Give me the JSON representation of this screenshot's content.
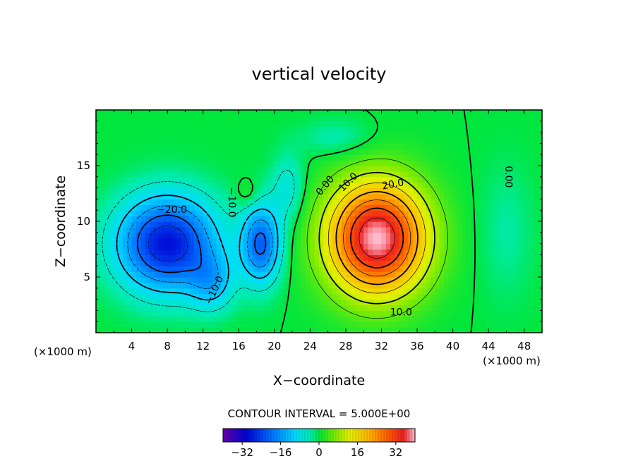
{
  "chart_data": {
    "type": "heatmap",
    "title": "vertical velocity",
    "xlabel": "X−coordinate",
    "ylabel": "Z−coordinate",
    "x_unit_left": "(×1000 m)",
    "x_unit_right": "(×1000 m)",
    "x_ticks": [
      "4",
      "8",
      "12",
      "16",
      "20",
      "24",
      "28",
      "32",
      "36",
      "40",
      "44",
      "48"
    ],
    "y_ticks": [
      "5",
      "10",
      "15"
    ],
    "xlim": [
      0,
      50
    ],
    "ylim": [
      0,
      20
    ],
    "contour_interval_text": "CONTOUR INTERVAL = 5.000E+00",
    "colorbar_ticks": [
      "−32",
      "−16",
      "0",
      "16",
      "32"
    ],
    "colorbar_range": [
      -40,
      40
    ],
    "contour_labels": [
      {
        "text": "−20.0",
        "x": 8.5,
        "y": 11.0,
        "rot": 0
      },
      {
        "text": "−10.0",
        "x": 15.2,
        "y": 11.7,
        "rot": 90
      },
      {
        "text": "−10.0",
        "x": 13.3,
        "y": 3.8,
        "rot": -65
      },
      {
        "text": "0.00",
        "x": 25.7,
        "y": 13.2,
        "rot": -50
      },
      {
        "text": "10.0",
        "x": 28.3,
        "y": 13.5,
        "rot": -45
      },
      {
        "text": "20.0",
        "x": 33.3,
        "y": 13.3,
        "rot": -10
      },
      {
        "text": "10.0",
        "x": 34.2,
        "y": 1.8,
        "rot": 0
      },
      {
        "text": "0.00",
        "x": 46.2,
        "y": 14.0,
        "rot": 90
      }
    ],
    "features": [
      {
        "name": "updraft core",
        "x": 31.5,
        "z": 8.5,
        "value": 37
      },
      {
        "name": "downdraft core",
        "x": 8.0,
        "z": 8.0,
        "value": -28
      },
      {
        "name": "secondary downdraft",
        "x": 18.5,
        "z": 8.0,
        "value": -20
      }
    ]
  }
}
